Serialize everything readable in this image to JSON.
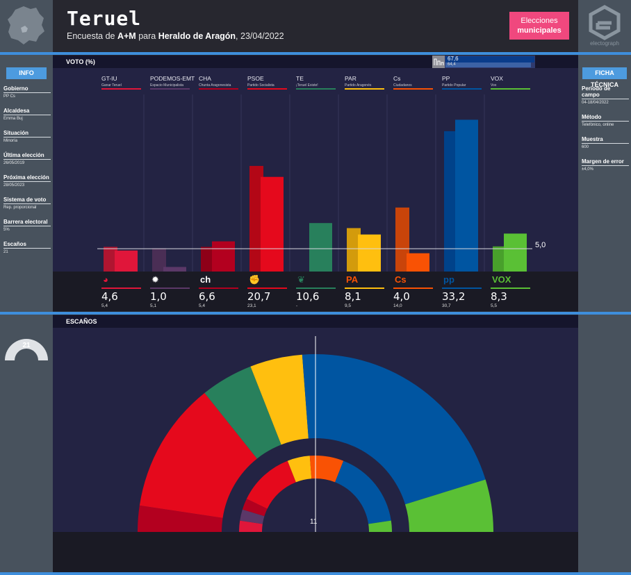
{
  "header": {
    "title": "Teruel",
    "subtitle_prefix": "Encuesta de ",
    "pollster": "A+M",
    "subtitle_mid": " para ",
    "media": "Heraldo de Aragón",
    "date": ", 23/04/2022",
    "badge_line1": "Elecciones",
    "badge_line2": "municipales",
    "brand": "electograph"
  },
  "sidebar_left": {
    "head": "INFO",
    "items": [
      {
        "label": "Gobierno",
        "value": "PP Cs"
      },
      {
        "label": "Alcaldesa",
        "value": "Emma Buj"
      },
      {
        "label": "Situación",
        "value": "Minoría"
      },
      {
        "label": "Última elección",
        "value": "26/05/2019"
      },
      {
        "label": "Próxima elección",
        "value": "28/05/2023"
      },
      {
        "label": "Sistema de voto",
        "value": "Rep. proporcional"
      },
      {
        "label": "Barrera electoral",
        "value": "5%"
      },
      {
        "label": "Escaños",
        "value": "21"
      }
    ],
    "seats_total": "21"
  },
  "sidebar_right": {
    "head": "FICHA TÉCNICA",
    "items": [
      {
        "label": "Periodo de campo",
        "value": "04-18/04/2022"
      },
      {
        "label": "Método",
        "value": "Telefónico, online"
      },
      {
        "label": "Muestra",
        "value": "600"
      },
      {
        "label": "Margen de error",
        "value": "±4,0%"
      }
    ]
  },
  "votes_title": "VOTO (%)",
  "seats_title": "ESCAÑOS",
  "bloc": {
    "current": "67,6",
    "previous": "64,4"
  },
  "threshold_label": "5,0",
  "majority_label": "11",
  "chart_data": [
    {
      "type": "bar",
      "title": "VOTO (%)",
      "threshold": 5.0,
      "categories": [
        "GT-IU",
        "PODEMOS-EMT",
        "CHA",
        "PSOE",
        "TE",
        "PAR",
        "Cs",
        "PP",
        "VOX"
      ],
      "subnames": [
        "Ganar Teruel",
        "Espacio Municipalista",
        "Chunta Aragonesista",
        "Partido Socialista",
        "¡Teruel Existe!",
        "Partido Aragonés",
        "Ciudadanos",
        "Partido Popular",
        "Vox"
      ],
      "series": [
        {
          "values": [
            4.6,
            1.0,
            6.6,
            20.7,
            10.6,
            8.1,
            4.0,
            33.2,
            8.3
          ]
        },
        {
          "values": [
            5.4,
            5.1,
            5.4,
            23.1,
            null,
            9.5,
            14.0,
            30.7,
            5.5
          ]
        }
      ],
      "value_labels": [
        "4,6",
        "1,0",
        "6,6",
        "20,7",
        "10,6",
        "8,1",
        "4,0",
        "33,2",
        "8,3"
      ],
      "previous_labels": [
        "5,4",
        "5,1",
        "5,4",
        "23,1",
        "-",
        "9,5",
        "14,0",
        "30,7",
        "5,5"
      ],
      "colors": [
        "#e0163a",
        "#5b3868",
        "#b3001f",
        "#e5091c",
        "#28805c",
        "#ffbf0f",
        "#f95204",
        "#0055a1",
        "#5ac035"
      ],
      "prev_colors": [
        "#b01530",
        "#4a2e55",
        "#8e0018",
        "#b30716",
        "#28805c",
        "#d39b0c",
        "#c9440a",
        "#00428a",
        "#48a02b"
      ],
      "ylim": [
        0,
        36
      ]
    },
    {
      "type": "pie",
      "title": "ESCAÑOS",
      "categories": [
        "GT-IU",
        "PODEMOS-EMT",
        "CHA",
        "PSOE",
        "TE",
        "PAR",
        "Cs",
        "PP",
        "VOX"
      ],
      "values": [
        0,
        0,
        1,
        5,
        2,
        2,
        0,
        9,
        2
      ],
      "previous": [
        1,
        1,
        1,
        5,
        null,
        2,
        3,
        7,
        1
      ],
      "value_labels": [
        "0",
        "0",
        "1",
        "5",
        "2",
        "2",
        "0",
        "9",
        "2"
      ],
      "previous_labels": [
        "1",
        "1",
        "1",
        "5",
        "-",
        "2",
        "3",
        "7",
        "1"
      ],
      "total": 21,
      "majority": 11
    }
  ],
  "logos": [
    "gt",
    "podemos",
    "cha",
    "psoe",
    "te",
    "par",
    "cs",
    "pp",
    "vox"
  ]
}
